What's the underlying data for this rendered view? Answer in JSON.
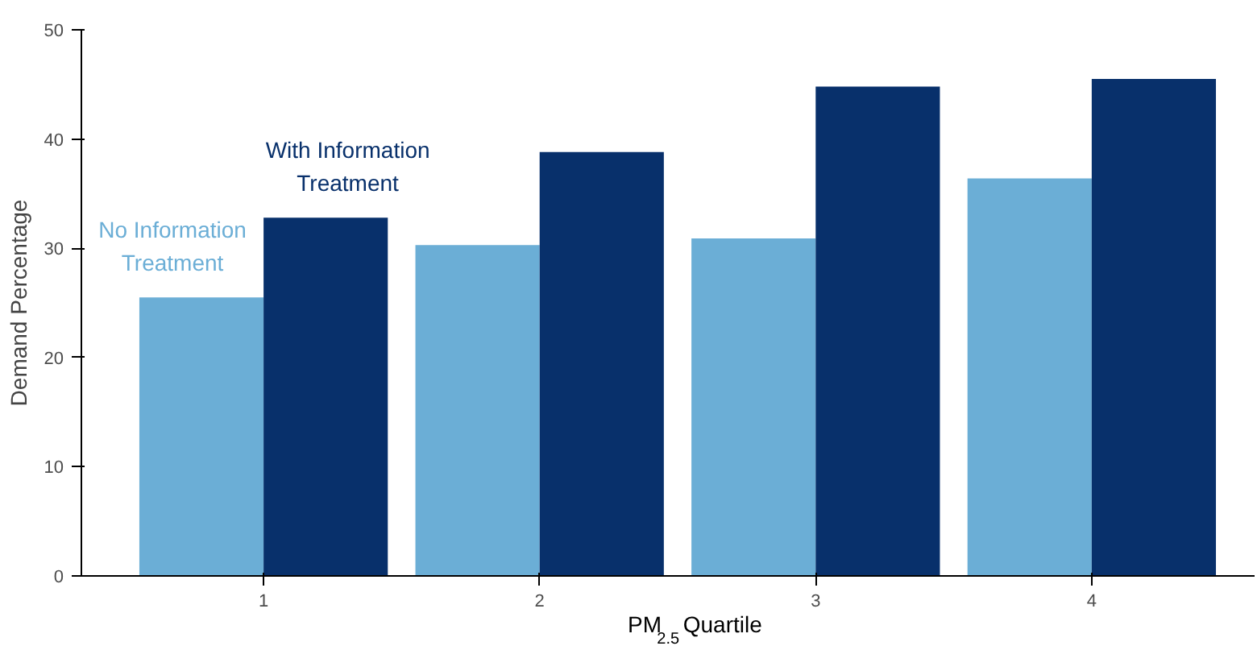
{
  "chart_data": {
    "type": "bar",
    "categories": [
      "1",
      "2",
      "3",
      "4"
    ],
    "series": [
      {
        "name": "No Information Treatment",
        "color": "#6baed6",
        "values": [
          25.5,
          30.3,
          30.9,
          36.4
        ]
      },
      {
        "name": "With Information Treatment",
        "color": "#08306b",
        "values": [
          32.8,
          38.8,
          44.8,
          45.5
        ]
      }
    ],
    "xlabel": "PM$_{2.5}$ Quartile",
    "ylabel": "Demand Percentage",
    "ylim": [
      0,
      50
    ],
    "yticks": [
      0,
      10,
      20,
      30,
      40,
      50
    ],
    "grid": false,
    "legend": false
  }
}
